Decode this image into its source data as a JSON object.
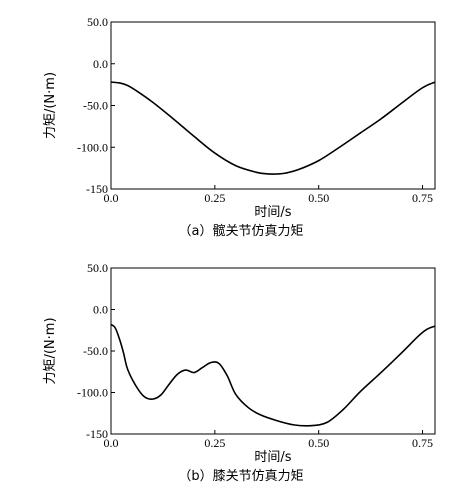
{
  "chart_data": [
    {
      "type": "line",
      "caption": "（a）髋关节仿真力矩",
      "xlabel": "时间/s",
      "ylabel": "力矩/(N·m)",
      "xlim": [
        0,
        0.78
      ],
      "ylim": [
        -150,
        50
      ],
      "xticks": [
        "0.0",
        "0.25",
        "0.50",
        "0.75"
      ],
      "yticks": [
        "50.0",
        "0.0",
        "-50.0",
        "-100.0",
        "-150"
      ],
      "grid": false,
      "x": [
        0,
        0.02,
        0.04,
        0.06,
        0.1,
        0.15,
        0.2,
        0.25,
        0.3,
        0.35,
        0.38,
        0.4,
        0.42,
        0.45,
        0.5,
        0.55,
        0.6,
        0.65,
        0.7,
        0.74,
        0.76,
        0.78
      ],
      "y": [
        -22,
        -23,
        -26,
        -32,
        -46,
        -66,
        -87,
        -107,
        -122,
        -130,
        -132,
        -132,
        -131,
        -127,
        -116,
        -100,
        -83,
        -66,
        -47,
        -32,
        -26,
        -22
      ]
    },
    {
      "type": "line",
      "caption": "（b）膝关节仿真力矩",
      "xlabel": "时间/s",
      "ylabel": "力矩/(N·m)",
      "xlim": [
        0,
        0.78
      ],
      "ylim": [
        -150,
        50
      ],
      "xticks": [
        "0.0",
        "0.25",
        "0.50",
        "0.75"
      ],
      "yticks": [
        "50.0",
        "0.0",
        "-50.0",
        "-100.0",
        "-150"
      ],
      "grid": false,
      "x": [
        0,
        0.01,
        0.02,
        0.03,
        0.04,
        0.06,
        0.08,
        0.1,
        0.12,
        0.14,
        0.16,
        0.18,
        0.2,
        0.22,
        0.24,
        0.26,
        0.28,
        0.3,
        0.33,
        0.36,
        0.4,
        0.44,
        0.48,
        0.52,
        0.56,
        0.6,
        0.65,
        0.7,
        0.74,
        0.76,
        0.78
      ],
      "y": [
        -18,
        -22,
        -35,
        -52,
        -72,
        -92,
        -105,
        -108,
        -103,
        -90,
        -78,
        -73,
        -76,
        -70,
        -64,
        -65,
        -80,
        -102,
        -118,
        -127,
        -134,
        -139,
        -140,
        -136,
        -120,
        -99,
        -76,
        -52,
        -32,
        -24,
        -20
      ]
    }
  ]
}
